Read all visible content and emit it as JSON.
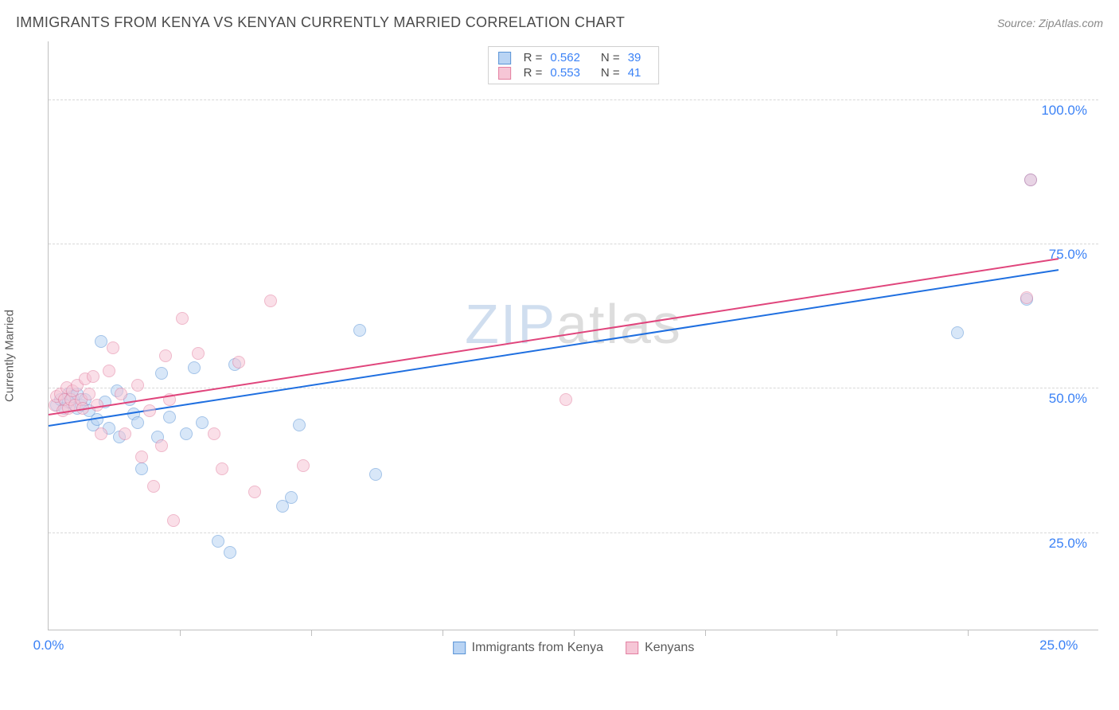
{
  "header": {
    "title": "IMMIGRANTS FROM KENYA VS KENYAN CURRENTLY MARRIED CORRELATION CHART",
    "source_prefix": "Source: ",
    "source_name": "ZipAtlas.com"
  },
  "chart": {
    "type": "scatter",
    "ylabel": "Currently Married",
    "background_color": "#ffffff",
    "border_color": "#bfbfbf",
    "grid_color": "#d8d8d8",
    "label_color": "#3b82f6",
    "text_color": "#5a5a5a",
    "point_radius": 8,
    "point_opacity": 0.55,
    "xlim": [
      0,
      26
    ],
    "ylim": [
      8,
      110
    ],
    "xticks_minor": [
      3.25,
      6.5,
      9.75,
      13,
      16.25,
      19.5,
      22.75
    ],
    "xticks_labeled": [
      {
        "x": 0,
        "label": "0.0%"
      },
      {
        "x": 25,
        "label": "25.0%"
      }
    ],
    "yticks": [
      {
        "y": 25,
        "label": "25.0%"
      },
      {
        "y": 50,
        "label": "50.0%"
      },
      {
        "y": 75,
        "label": "75.0%"
      },
      {
        "y": 100,
        "label": "100.0%"
      }
    ],
    "watermark": {
      "part1": "ZIP",
      "part2": "atlas"
    },
    "legend_top": [
      {
        "swatch_fill": "#b9d4f4",
        "swatch_border": "#5a94d6",
        "r_label": "R =",
        "r_value": "0.562",
        "n_label": "N =",
        "n_value": "39"
      },
      {
        "swatch_fill": "#f6c6d6",
        "swatch_border": "#e37fa0",
        "r_label": "R =",
        "r_value": "0.553",
        "n_label": "N =",
        "n_value": "41"
      }
    ],
    "legend_bottom": [
      {
        "swatch_fill": "#b9d4f4",
        "swatch_border": "#5a94d6",
        "label": "Immigrants from Kenya"
      },
      {
        "swatch_fill": "#f6c6d6",
        "swatch_border": "#e37fa0",
        "label": "Kenyans"
      }
    ],
    "series": [
      {
        "name": "Immigrants from Kenya",
        "fill": "#b9d4f4",
        "stroke": "#5a94d6",
        "trend_color": "#1f6fe0",
        "trend": {
          "x1": 0,
          "y1": 43.5,
          "x2": 25,
          "y2": 70.5
        },
        "points": [
          {
            "x": 0.2,
            "y": 47
          },
          {
            "x": 0.3,
            "y": 48
          },
          {
            "x": 0.4,
            "y": 46.5
          },
          {
            "x": 0.5,
            "y": 47.5
          },
          {
            "x": 0.5,
            "y": 49
          },
          {
            "x": 0.6,
            "y": 48.5
          },
          {
            "x": 0.7,
            "y": 46.5
          },
          {
            "x": 0.7,
            "y": 49
          },
          {
            "x": 0.8,
            "y": 47
          },
          {
            "x": 0.9,
            "y": 48
          },
          {
            "x": 1.0,
            "y": 46
          },
          {
            "x": 1.1,
            "y": 43.5
          },
          {
            "x": 1.2,
            "y": 44.5
          },
          {
            "x": 1.3,
            "y": 58
          },
          {
            "x": 1.4,
            "y": 47.5
          },
          {
            "x": 1.5,
            "y": 43
          },
          {
            "x": 1.7,
            "y": 49.5
          },
          {
            "x": 1.75,
            "y": 41.5
          },
          {
            "x": 2.0,
            "y": 48
          },
          {
            "x": 2.1,
            "y": 45.5
          },
          {
            "x": 2.2,
            "y": 44
          },
          {
            "x": 2.3,
            "y": 36
          },
          {
            "x": 2.7,
            "y": 41.5
          },
          {
            "x": 2.8,
            "y": 52.5
          },
          {
            "x": 3.0,
            "y": 45
          },
          {
            "x": 3.4,
            "y": 42
          },
          {
            "x": 3.6,
            "y": 53.5
          },
          {
            "x": 3.8,
            "y": 44
          },
          {
            "x": 4.2,
            "y": 23.5
          },
          {
            "x": 4.5,
            "y": 21.5
          },
          {
            "x": 4.6,
            "y": 54
          },
          {
            "x": 5.8,
            "y": 29.5
          },
          {
            "x": 6.0,
            "y": 31
          },
          {
            "x": 6.2,
            "y": 43.5
          },
          {
            "x": 7.7,
            "y": 60
          },
          {
            "x": 8.1,
            "y": 35
          },
          {
            "x": 22.5,
            "y": 59.5
          },
          {
            "x": 24.2,
            "y": 65.3
          },
          {
            "x": 24.3,
            "y": 86
          }
        ]
      },
      {
        "name": "Kenyans",
        "fill": "#f6c6d6",
        "stroke": "#e37fa0",
        "trend_color": "#e0457c",
        "trend": {
          "x1": 0,
          "y1": 45.5,
          "x2": 25,
          "y2": 72.5
        },
        "points": [
          {
            "x": 0.15,
            "y": 47
          },
          {
            "x": 0.2,
            "y": 48.5
          },
          {
            "x": 0.3,
            "y": 49
          },
          {
            "x": 0.35,
            "y": 46
          },
          {
            "x": 0.4,
            "y": 48
          },
          {
            "x": 0.45,
            "y": 50
          },
          {
            "x": 0.5,
            "y": 46.5
          },
          {
            "x": 0.55,
            "y": 48
          },
          {
            "x": 0.6,
            "y": 49.5
          },
          {
            "x": 0.65,
            "y": 47
          },
          {
            "x": 0.7,
            "y": 50.5
          },
          {
            "x": 0.8,
            "y": 48
          },
          {
            "x": 0.85,
            "y": 46.5
          },
          {
            "x": 0.9,
            "y": 51.5
          },
          {
            "x": 1.0,
            "y": 49
          },
          {
            "x": 1.1,
            "y": 52
          },
          {
            "x": 1.2,
            "y": 47
          },
          {
            "x": 1.3,
            "y": 42
          },
          {
            "x": 1.5,
            "y": 53
          },
          {
            "x": 1.6,
            "y": 57
          },
          {
            "x": 1.8,
            "y": 49
          },
          {
            "x": 1.9,
            "y": 42
          },
          {
            "x": 2.2,
            "y": 50.5
          },
          {
            "x": 2.3,
            "y": 38
          },
          {
            "x": 2.5,
            "y": 46
          },
          {
            "x": 2.6,
            "y": 33
          },
          {
            "x": 2.8,
            "y": 40
          },
          {
            "x": 2.9,
            "y": 55.5
          },
          {
            "x": 3.0,
            "y": 48
          },
          {
            "x": 3.1,
            "y": 27
          },
          {
            "x": 3.3,
            "y": 62
          },
          {
            "x": 3.7,
            "y": 56
          },
          {
            "x": 4.1,
            "y": 42
          },
          {
            "x": 4.3,
            "y": 36
          },
          {
            "x": 4.7,
            "y": 54.5
          },
          {
            "x": 5.1,
            "y": 32
          },
          {
            "x": 5.5,
            "y": 65
          },
          {
            "x": 6.3,
            "y": 36.5
          },
          {
            "x": 12.8,
            "y": 48
          },
          {
            "x": 24.2,
            "y": 65.6
          },
          {
            "x": 24.3,
            "y": 86
          }
        ]
      }
    ]
  }
}
